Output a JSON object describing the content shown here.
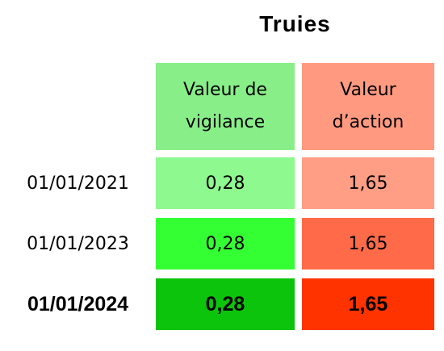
{
  "title": "Truies",
  "table": {
    "header": [
      "Valeur de vigilance",
      "Valeur d’action"
    ],
    "rows": [
      [
        "01/01/2021",
        "0,28",
        "1,65"
      ],
      [
        "01/01/2023",
        "0,28",
        "1,65"
      ],
      [
        "01/01/2024",
        "0,28",
        "1,65"
      ]
    ]
  }
}
